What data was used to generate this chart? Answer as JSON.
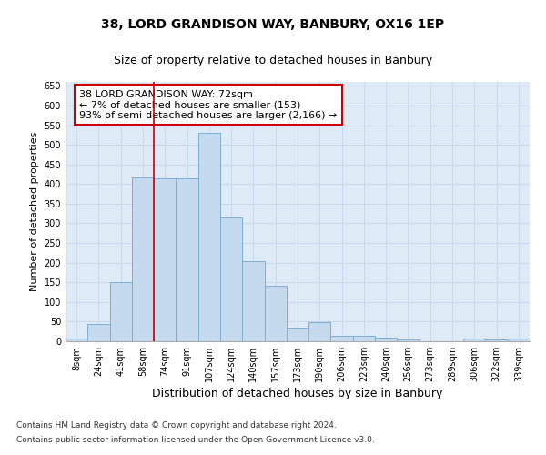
{
  "title": "38, LORD GRANDISON WAY, BANBURY, OX16 1EP",
  "subtitle": "Size of property relative to detached houses in Banbury",
  "xlabel": "Distribution of detached houses by size in Banbury",
  "ylabel": "Number of detached properties",
  "categories": [
    "8sqm",
    "24sqm",
    "41sqm",
    "58sqm",
    "74sqm",
    "91sqm",
    "107sqm",
    "124sqm",
    "140sqm",
    "157sqm",
    "173sqm",
    "190sqm",
    "206sqm",
    "223sqm",
    "240sqm",
    "256sqm",
    "273sqm",
    "289sqm",
    "306sqm",
    "322sqm",
    "339sqm"
  ],
  "values": [
    8,
    45,
    150,
    418,
    415,
    415,
    530,
    315,
    203,
    142,
    35,
    48,
    15,
    13,
    9,
    4,
    1,
    1,
    6,
    5,
    6
  ],
  "bar_color": "#c5d9ef",
  "bar_edge_color": "#7bafd4",
  "vline_x": 3.5,
  "vline_color": "#cc0000",
  "annotation_text": "38 LORD GRANDISON WAY: 72sqm\n← 7% of detached houses are smaller (153)\n93% of semi-detached houses are larger (2,166) →",
  "annotation_box_color": "#ffffff",
  "annotation_box_edge": "#cc0000",
  "footer1": "Contains HM Land Registry data © Crown copyright and database right 2024.",
  "footer2": "Contains public sector information licensed under the Open Government Licence v3.0.",
  "ylim": [
    0,
    660
  ],
  "yticks": [
    0,
    50,
    100,
    150,
    200,
    250,
    300,
    350,
    400,
    450,
    500,
    550,
    600,
    650
  ],
  "grid_color": "#c8d8ea",
  "bg_color": "#deeaf6",
  "fig_bg": "#ffffff",
  "title_fontsize": 10,
  "subtitle_fontsize": 9,
  "ylabel_fontsize": 8,
  "xlabel_fontsize": 9,
  "tick_fontsize": 7,
  "ann_fontsize": 8,
  "footer_fontsize": 6.5
}
